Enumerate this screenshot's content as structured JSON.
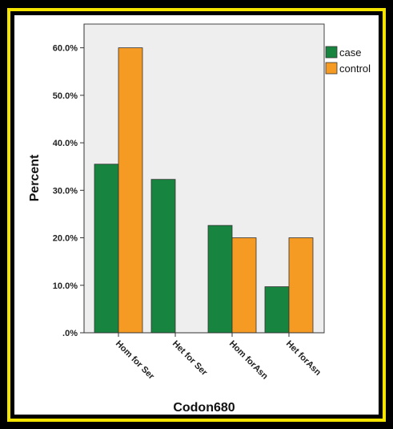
{
  "chart_data": {
    "type": "bar",
    "xlabel": "Codon680",
    "ylabel": "Percent",
    "ylim": [
      0,
      65
    ],
    "yticks": [
      0,
      10,
      20,
      30,
      40,
      50,
      60
    ],
    "ytick_labels": [
      ".0%",
      "10.0%",
      "20.0%",
      "30.0%",
      "40.0%",
      "50.0%",
      "60.0%"
    ],
    "categories": [
      "Hom for Ser",
      "Het for Ser",
      "Hom forAsn",
      "Het forAsn"
    ],
    "series": [
      {
        "name": "case",
        "color": "#17843f",
        "values": [
          35.5,
          32.3,
          22.6,
          9.7
        ]
      },
      {
        "name": "control",
        "color": "#f59a23",
        "values": [
          60.0,
          0.0,
          20.0,
          20.0
        ]
      }
    ],
    "legend": "top-right",
    "grid": false,
    "background": "#eeeeee"
  }
}
